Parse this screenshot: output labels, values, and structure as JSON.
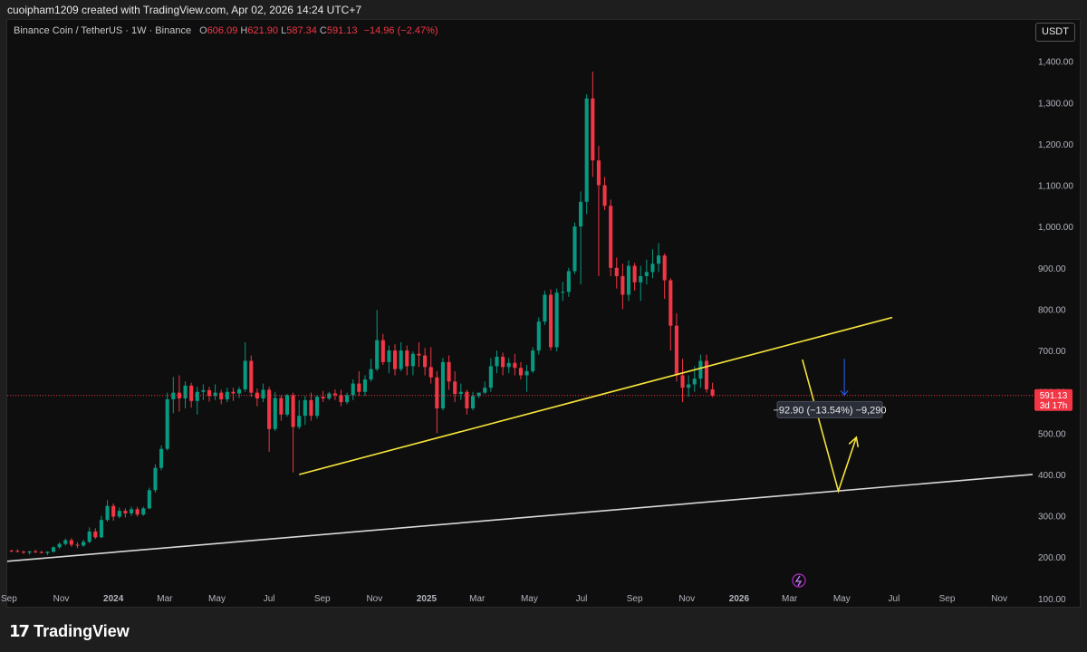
{
  "header": {
    "attribution": "cuoipham1209 created with TradingView.com, Apr 02, 2026 14:24 UTC+7"
  },
  "legend": {
    "symbol": "Binance Coin / TetherUS · 1W · Binance",
    "open_label": "O",
    "open": "606.09",
    "high_label": "H",
    "high": "621.90",
    "low_label": "L",
    "low": "587.34",
    "close_label": "C",
    "close": "591.13",
    "change": "−14.96 (−2.47%)"
  },
  "currency_button": "USDT",
  "measurement_label": "−92.90 (−13.54%) −9,290",
  "footer": {
    "brand": "TradingView"
  },
  "chart_data": {
    "type": "candlestick",
    "title": "Binance Coin / TetherUS · 1W · Binance",
    "ylim": [
      80,
      1500
    ],
    "y_ticks": [
      100,
      200,
      300,
      400,
      500,
      600,
      700,
      800,
      900,
      1000,
      1100,
      1200,
      1300,
      1400
    ],
    "y_tick_labels": [
      "100.00",
      "200.00",
      "300.00",
      "400.00",
      "500.00",
      "600.00",
      "700.00",
      "800.00",
      "900.00",
      "1,000.00",
      "1,100.00",
      "1,200.00",
      "1,300.00",
      "1,400.00"
    ],
    "xlim": [
      "2023-08-30",
      "2026-12-10"
    ],
    "x_ticks": [
      {
        "date": "2023-09-01",
        "label": "Sep"
      },
      {
        "date": "2023-11-01",
        "label": "Nov"
      },
      {
        "date": "2024-01-01",
        "label": "2024"
      },
      {
        "date": "2024-03-01",
        "label": "Mar"
      },
      {
        "date": "2024-05-01",
        "label": "May"
      },
      {
        "date": "2024-07-01",
        "label": "Jul"
      },
      {
        "date": "2024-09-01",
        "label": "Sep"
      },
      {
        "date": "2024-11-01",
        "label": "Nov"
      },
      {
        "date": "2025-01-01",
        "label": "2025"
      },
      {
        "date": "2025-03-01",
        "label": "Mar"
      },
      {
        "date": "2025-05-01",
        "label": "May"
      },
      {
        "date": "2025-07-01",
        "label": "Jul"
      },
      {
        "date": "2025-09-01",
        "label": "Sep"
      },
      {
        "date": "2025-11-01",
        "label": "Nov"
      },
      {
        "date": "2026-01-01",
        "label": "2026"
      },
      {
        "date": "2026-03-01",
        "label": "Mar"
      },
      {
        "date": "2026-05-01",
        "label": "May"
      },
      {
        "date": "2026-07-01",
        "label": "Jul"
      },
      {
        "date": "2026-09-01",
        "label": "Sep"
      },
      {
        "date": "2026-11-01",
        "label": "Nov"
      }
    ],
    "start_date": "2023-09-04",
    "candles": [
      [
        216,
        218,
        212,
        215
      ],
      [
        215,
        219,
        211,
        213
      ],
      [
        213,
        216,
        208,
        211
      ],
      [
        211,
        215,
        206,
        214
      ],
      [
        214,
        218,
        210,
        212
      ],
      [
        212,
        216,
        209,
        210
      ],
      [
        210,
        214,
        205,
        213
      ],
      [
        213,
        226,
        211,
        224
      ],
      [
        224,
        236,
        220,
        232
      ],
      [
        232,
        245,
        228,
        241
      ],
      [
        241,
        246,
        225,
        230
      ],
      [
        230,
        236,
        222,
        228
      ],
      [
        228,
        242,
        225,
        237
      ],
      [
        237,
        272,
        234,
        262
      ],
      [
        262,
        270,
        244,
        248
      ],
      [
        248,
        300,
        246,
        290
      ],
      [
        290,
        338,
        286,
        324
      ],
      [
        324,
        330,
        288,
        298
      ],
      [
        298,
        320,
        294,
        312
      ],
      [
        312,
        318,
        296,
        306
      ],
      [
        306,
        322,
        300,
        316
      ],
      [
        316,
        322,
        298,
        303
      ],
      [
        303,
        322,
        300,
        318
      ],
      [
        318,
        368,
        316,
        362
      ],
      [
        362,
        425,
        356,
        416
      ],
      [
        416,
        470,
        410,
        462
      ],
      [
        462,
        598,
        458,
        582
      ],
      [
        582,
        636,
        548,
        598
      ],
      [
        598,
        640,
        552,
        584
      ],
      [
        584,
        625,
        560,
        615
      ],
      [
        615,
        622,
        562,
        578
      ],
      [
        578,
        612,
        545,
        600
      ],
      [
        600,
        618,
        580,
        604
      ],
      [
        604,
        612,
        576,
        590
      ],
      [
        590,
        618,
        580,
        598
      ],
      [
        598,
        605,
        570,
        582
      ],
      [
        582,
        610,
        575,
        600
      ],
      [
        600,
        610,
        578,
        596
      ],
      [
        596,
        612,
        585,
        606
      ],
      [
        606,
        720,
        600,
        675
      ],
      [
        675,
        688,
        588,
        598
      ],
      [
        598,
        608,
        565,
        584
      ],
      [
        584,
        620,
        575,
        605
      ],
      [
        605,
        612,
        455,
        510
      ],
      [
        510,
        600,
        505,
        585
      ],
      [
        585,
        592,
        530,
        545
      ],
      [
        545,
        595,
        540,
        592
      ],
      [
        592,
        598,
        405,
        515
      ],
      [
        515,
        580,
        510,
        542
      ],
      [
        542,
        590,
        520,
        580
      ],
      [
        580,
        598,
        530,
        542
      ],
      [
        542,
        592,
        535,
        588
      ],
      [
        588,
        602,
        575,
        584
      ],
      [
        584,
        600,
        580,
        596
      ],
      [
        596,
        606,
        580,
        592
      ],
      [
        592,
        605,
        565,
        575
      ],
      [
        575,
        598,
        570,
        592
      ],
      [
        592,
        630,
        580,
        620
      ],
      [
        620,
        650,
        590,
        600
      ],
      [
        600,
        640,
        590,
        630
      ],
      [
        630,
        680,
        625,
        655
      ],
      [
        655,
        798,
        650,
        725
      ],
      [
        725,
        740,
        665,
        672
      ],
      [
        672,
        712,
        645,
        700
      ],
      [
        700,
        715,
        640,
        655
      ],
      [
        655,
        720,
        650,
        700
      ],
      [
        700,
        712,
        640,
        662
      ],
      [
        662,
        698,
        640,
        692
      ],
      [
        692,
        720,
        660,
        688
      ],
      [
        688,
        706,
        640,
        660
      ],
      [
        660,
        708,
        620,
        635
      ],
      [
        635,
        650,
        500,
        560
      ],
      [
        560,
        682,
        555,
        672
      ],
      [
        672,
        688,
        605,
        625
      ],
      [
        625,
        650,
        575,
        595
      ],
      [
        595,
        620,
        580,
        600
      ],
      [
        600,
        605,
        545,
        560
      ],
      [
        560,
        600,
        555,
        590
      ],
      [
        590,
        598,
        585,
        598
      ],
      [
        598,
        625,
        595,
        610
      ],
      [
        610,
        682,
        600,
        662
      ],
      [
        662,
        700,
        645,
        685
      ],
      [
        685,
        695,
        640,
        660
      ],
      [
        660,
        682,
        645,
        670
      ],
      [
        670,
        692,
        640,
        658
      ],
      [
        658,
        672,
        630,
        640
      ],
      [
        640,
        665,
        600,
        650
      ],
      [
        650,
        708,
        645,
        700
      ],
      [
        700,
        780,
        690,
        770
      ],
      [
        770,
        845,
        762,
        835
      ],
      [
        835,
        848,
        700,
        708
      ],
      [
        708,
        850,
        698,
        840
      ],
      [
        840,
        866,
        820,
        842
      ],
      [
        842,
        900,
        830,
        892
      ],
      [
        892,
        1010,
        885,
        1000
      ],
      [
        1000,
        1085,
        860,
        1060
      ],
      [
        1060,
        1320,
        1030,
        1310
      ],
      [
        1310,
        1375,
        1120,
        1160
      ],
      [
        1160,
        1195,
        880,
        1100
      ],
      [
        1100,
        1120,
        1040,
        1050
      ],
      [
        1050,
        1065,
        880,
        900
      ],
      [
        900,
        925,
        850,
        880
      ],
      [
        880,
        910,
        800,
        835
      ],
      [
        835,
        918,
        820,
        905
      ],
      [
        905,
        912,
        845,
        865
      ],
      [
        865,
        905,
        820,
        880
      ],
      [
        880,
        920,
        860,
        890
      ],
      [
        890,
        945,
        875,
        910
      ],
      [
        910,
        960,
        890,
        930
      ],
      [
        930,
        935,
        825,
        870
      ],
      [
        870,
        875,
        700,
        760
      ],
      [
        760,
        790,
        625,
        640
      ],
      [
        640,
        680,
        575,
        610
      ],
      [
        610,
        640,
        588,
        618
      ],
      [
        618,
        662,
        600,
        632
      ],
      [
        632,
        690,
        610,
        675
      ],
      [
        675,
        690,
        598,
        606
      ],
      [
        606,
        622,
        587,
        591
      ]
    ],
    "last_price": "591.13",
    "countdown": "3d 17h",
    "trendlines": [
      {
        "color": "#f5e33a",
        "from": [
          "2024-08-05",
          400
        ],
        "to": [
          "2026-06-29",
          780
        ]
      },
      {
        "color": "#d8d8d8",
        "from": [
          "2023-08-30",
          190
        ],
        "to": [
          "2026-12-10",
          400
        ]
      }
    ],
    "projection": {
      "color": "#f5e33a",
      "points": [
        [
          "2026-03-16",
          678
        ],
        [
          "2026-04-27",
          360
        ],
        [
          "2026-05-18",
          490
        ]
      ]
    },
    "measure_arrow": {
      "date": "2026-05-04",
      "from": 680,
      "to": 592,
      "color": "#2962ff"
    }
  }
}
